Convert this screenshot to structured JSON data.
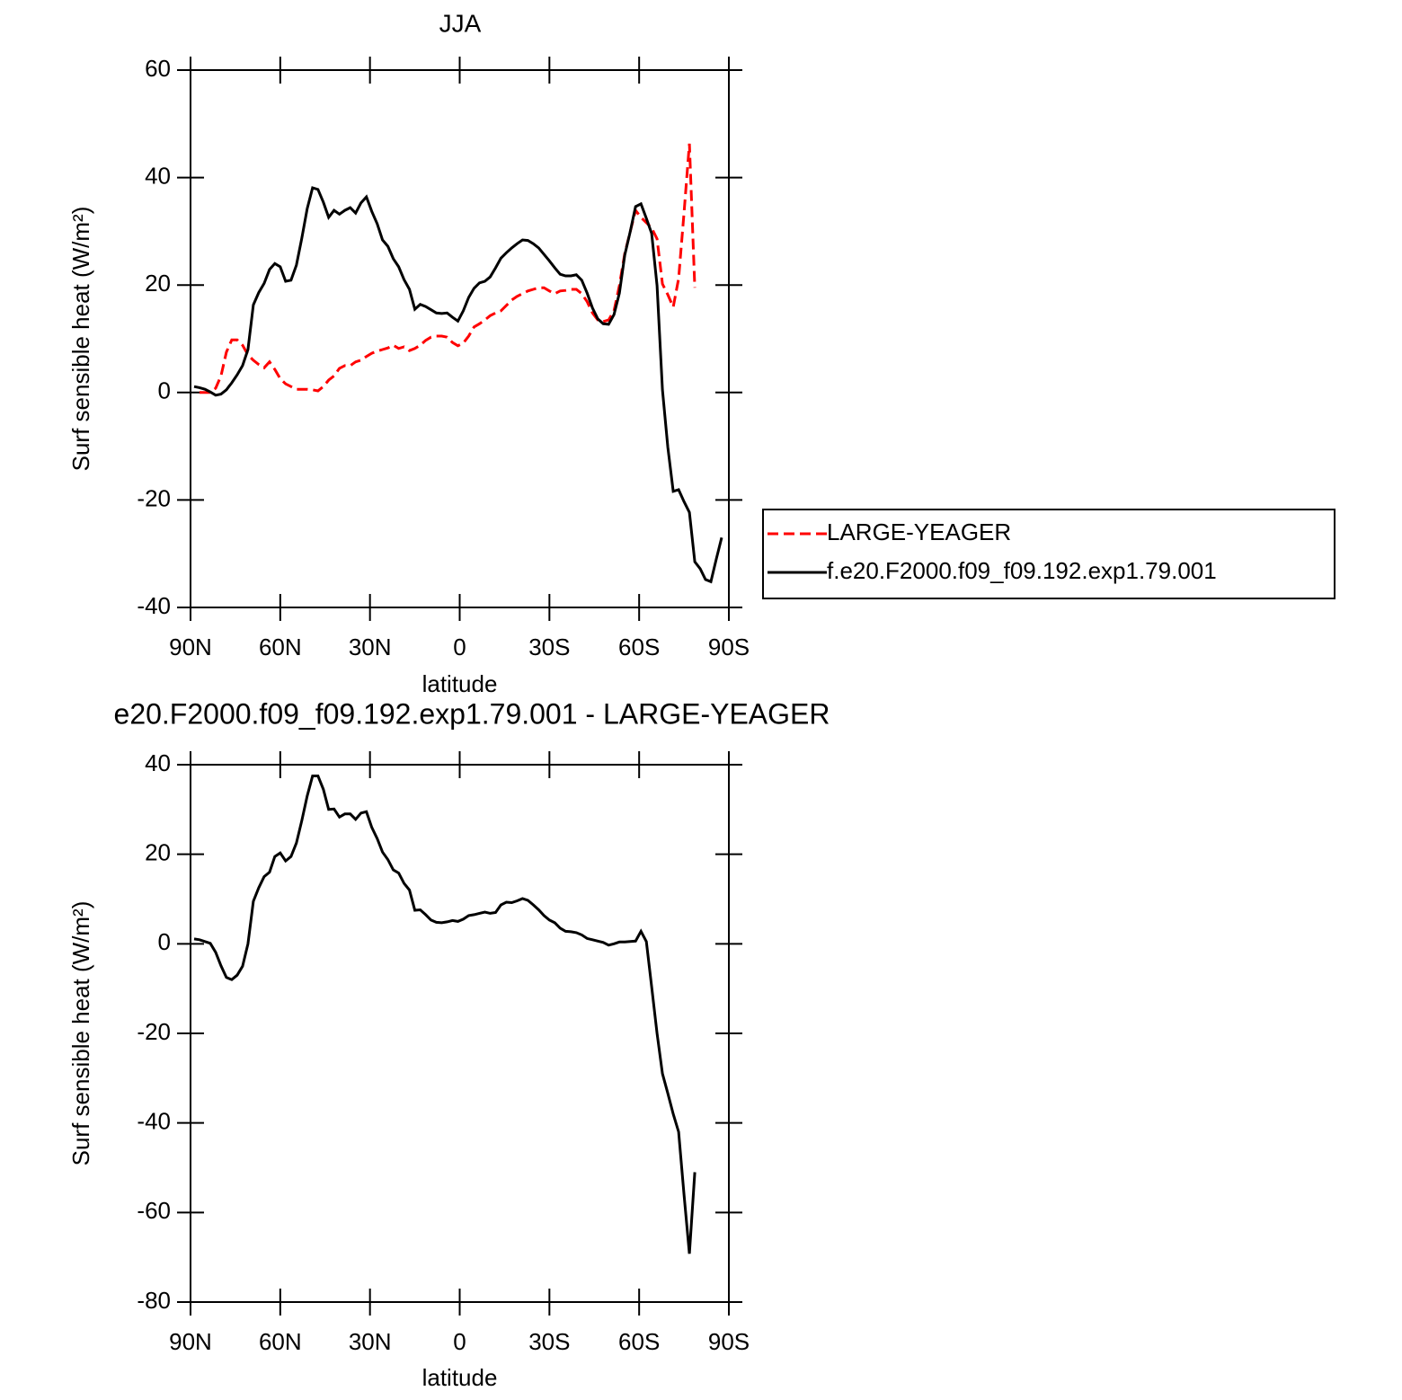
{
  "chart_data": [
    {
      "type": "line",
      "title": "JJA",
      "xlabel": "latitude",
      "ylabel": "Surf sensible heat (W/m²)",
      "xlim": [
        90,
        -90
      ],
      "xticks": [
        {
          "value": 90,
          "label": "90N"
        },
        {
          "value": 60,
          "label": "60N"
        },
        {
          "value": 30,
          "label": "30N"
        },
        0,
        {
          "value": -30,
          "label": "30S"
        },
        {
          "value": -60,
          "label": "60S"
        },
        {
          "value": -90,
          "label": "90S"
        }
      ],
      "ylim": [
        -40,
        60
      ],
      "yticks": [
        -40,
        -20,
        0,
        20,
        40,
        60
      ],
      "legend": "right",
      "x": [
        88.8,
        87,
        85.2,
        83.4,
        81.6,
        79.8,
        78,
        76.2,
        74.4,
        72.6,
        70.8,
        69,
        67.2,
        65.4,
        63.6,
        61.8,
        60,
        58.2,
        56.4,
        54.6,
        52.8,
        51,
        49.2,
        47.4,
        45.6,
        43.8,
        42,
        40.2,
        38.4,
        36.6,
        34.8,
        33,
        31.2,
        29.4,
        27.6,
        25.8,
        24,
        22.2,
        20.4,
        18.6,
        16.8,
        15,
        13.2,
        11.4,
        9.6,
        7.8,
        6,
        4.2,
        2.4,
        0.6,
        -1.2,
        -3,
        -4.8,
        -6.6,
        -8.4,
        -10.2,
        -12,
        -13.8,
        -15.6,
        -17.4,
        -19.2,
        -21,
        -22.8,
        -24.6,
        -26.4,
        -28.2,
        -30,
        -31.8,
        -33.6,
        -35.4,
        -37.2,
        -39,
        -40.8,
        -42.6,
        -44.4,
        -46.2,
        -48,
        -49.8,
        -51.6,
        -53.4,
        -55.2,
        -57,
        -58.8,
        -60.6,
        -62.4,
        -64.2,
        -66,
        -67.8,
        -69.6,
        -71.4,
        -73.2,
        -75,
        -76.8,
        -78.6,
        -80.4,
        -82.2,
        -84,
        -85.8,
        -87.6
      ],
      "series": [
        {
          "name": "LARGE-YEAGER",
          "color": "#ff0000",
          "line_style": "dashed",
          "values": [
            null,
            0,
            0,
            0,
            0.8,
            3.1,
            7.5,
            9.8,
            9.8,
            8.8,
            7,
            6,
            5.2,
            4.6,
            5.7,
            4.3,
            2.6,
            1.6,
            1.1,
            0.6,
            0.6,
            0.6,
            0.5,
            0.3,
            1.1,
            2.3,
            3.1,
            4.5,
            5,
            5,
            5.7,
            6,
            6.7,
            7.3,
            7.7,
            8,
            8.3,
            8.8,
            8.2,
            8.5,
            7.8,
            8.2,
            8.8,
            9.7,
            10.3,
            10.5,
            10.5,
            10.3,
            9.3,
            8.7,
            9.2,
            10.5,
            12.2,
            12.8,
            13.5,
            14.3,
            14.8,
            15.2,
            16.2,
            17.2,
            17.9,
            18.4,
            18.9,
            19.2,
            19.5,
            19.5,
            18.9,
            18.4,
            18.9,
            19,
            19.2,
            19.2,
            18.4,
            16.9,
            14.8,
            13.5,
            13.2,
            13.5,
            15.2,
            19.9,
            25.9,
            29.9,
            33.9,
            32.6,
            31.6,
            30.6,
            28.6,
            20.2,
            18.2,
            15.9,
            21.2,
            33.4,
            46.3,
            19.5,
            null,
            null,
            null,
            null,
            null
          ]
        },
        {
          "name": "f.e20.F2000.f09_f09.192.exp1.79.001",
          "color": "#000000",
          "line_style": "solid",
          "values": [
            1.1,
            0.9,
            0.6,
            0.1,
            -0.5,
            -0.3,
            0.5,
            1.8,
            3.3,
            5,
            8,
            16.3,
            18.6,
            20.3,
            22.9,
            24,
            23.4,
            20.7,
            20.9,
            23.7,
            28.7,
            34.2,
            38.1,
            37.8,
            35.4,
            32.6,
            33.9,
            33.2,
            33.9,
            34.4,
            33.4,
            35.3,
            36.4,
            33.7,
            31.4,
            28.4,
            27.2,
            24.9,
            23.4,
            21,
            19.2,
            15.5,
            16.4,
            16,
            15.4,
            14.8,
            14.7,
            14.8,
            14,
            13.3,
            15.2,
            17.7,
            19.4,
            20.4,
            20.7,
            21.5,
            23.2,
            25,
            26,
            26.9,
            27.7,
            28.4,
            28.3,
            27.7,
            26.9,
            25.7,
            24.5,
            23.2,
            22,
            21.7,
            21.7,
            21.9,
            20.9,
            18.5,
            15.7,
            13.7,
            12.8,
            12.7,
            14.5,
            18.5,
            25.6,
            29.9,
            34.6,
            35.1,
            32.4,
            29.6,
            19.9,
            0.5,
            -10.2,
            -18.4,
            -18.1,
            -20.3,
            -22.3,
            -31.5,
            -32.8,
            -34.8,
            -35.2,
            -31,
            -27
          ]
        }
      ]
    },
    {
      "type": "line",
      "title": "e20.F2000.f09_f09.192.exp1.79.001 - LARGE-YEAGER",
      "xlabel": "latitude",
      "ylabel": "Surf sensible heat (W/m²)",
      "xlim": [
        90,
        -90
      ],
      "xticks": [
        {
          "value": 90,
          "label": "90N"
        },
        {
          "value": 60,
          "label": "60N"
        },
        {
          "value": 30,
          "label": "30N"
        },
        0,
        {
          "value": -30,
          "label": "30S"
        },
        {
          "value": -60,
          "label": "60S"
        },
        {
          "value": -90,
          "label": "90S"
        }
      ],
      "ylim": [
        -80,
        40
      ],
      "yticks": [
        -80,
        -60,
        -40,
        -20,
        0,
        20,
        40
      ],
      "x": [
        88.8,
        87,
        85.2,
        83.4,
        81.6,
        79.8,
        78,
        76.2,
        74.4,
        72.6,
        70.8,
        69,
        67.2,
        65.4,
        63.6,
        61.8,
        60,
        58.2,
        56.4,
        54.6,
        52.8,
        51,
        49.2,
        47.4,
        45.6,
        43.8,
        42,
        40.2,
        38.4,
        36.6,
        34.8,
        33,
        31.2,
        29.4,
        27.6,
        25.8,
        24,
        22.2,
        20.4,
        18.6,
        16.8,
        15,
        13.2,
        11.4,
        9.6,
        7.8,
        6,
        4.2,
        2.4,
        0.6,
        -1.2,
        -3,
        -4.8,
        -6.6,
        -8.4,
        -10.2,
        -12,
        -13.8,
        -15.6,
        -17.4,
        -19.2,
        -21,
        -22.8,
        -24.6,
        -26.4,
        -28.2,
        -30,
        -31.8,
        -33.6,
        -35.4,
        -37.2,
        -39,
        -40.8,
        -42.6,
        -44.4,
        -46.2,
        -48,
        -49.8,
        -51.6,
        -53.4,
        -55.2,
        -57,
        -58.8,
        -60.6,
        -62.4,
        -64.2,
        -66,
        -67.8,
        -69.6,
        -71.4,
        -73.2,
        -75,
        -76.8,
        -78.6,
        -80.4,
        -82.2,
        -84,
        -85.8,
        -87.6
      ],
      "color": "#000000",
      "values": [
        1.1,
        0.9,
        0.5,
        0.1,
        -1.9,
        -4.9,
        -7.5,
        -8,
        -7,
        -5,
        0,
        9.5,
        12.5,
        15,
        16,
        19.5,
        20.3,
        18.5,
        19.5,
        22.5,
        27.5,
        33,
        37.5,
        37.5,
        34.5,
        30,
        30.1,
        28.3,
        29,
        29,
        27.8,
        29.2,
        29.5,
        26,
        23.5,
        20.5,
        18.8,
        16.5,
        15.8,
        13.5,
        12,
        7.5,
        7.6,
        6.5,
        5.3,
        4.8,
        4.7,
        4.9,
        5.2,
        5,
        5.5,
        6.3,
        6.5,
        6.8,
        7.1,
        6.8,
        7,
        8.7,
        9.3,
        9.2,
        9.6,
        10.1,
        9.7,
        8.7,
        7.6,
        6.3,
        5.3,
        4.7,
        3.5,
        2.8,
        2.7,
        2.5,
        2,
        1.2,
        0.9,
        0.6,
        0.3,
        -0.3,
        0,
        0.4,
        0.4,
        0.5,
        0.6,
        2.8,
        0.5,
        -9.6,
        -20,
        -29,
        -33.4,
        -38,
        -42,
        -56,
        -69.2,
        -51,
        null,
        null,
        null,
        null,
        null
      ]
    }
  ]
}
